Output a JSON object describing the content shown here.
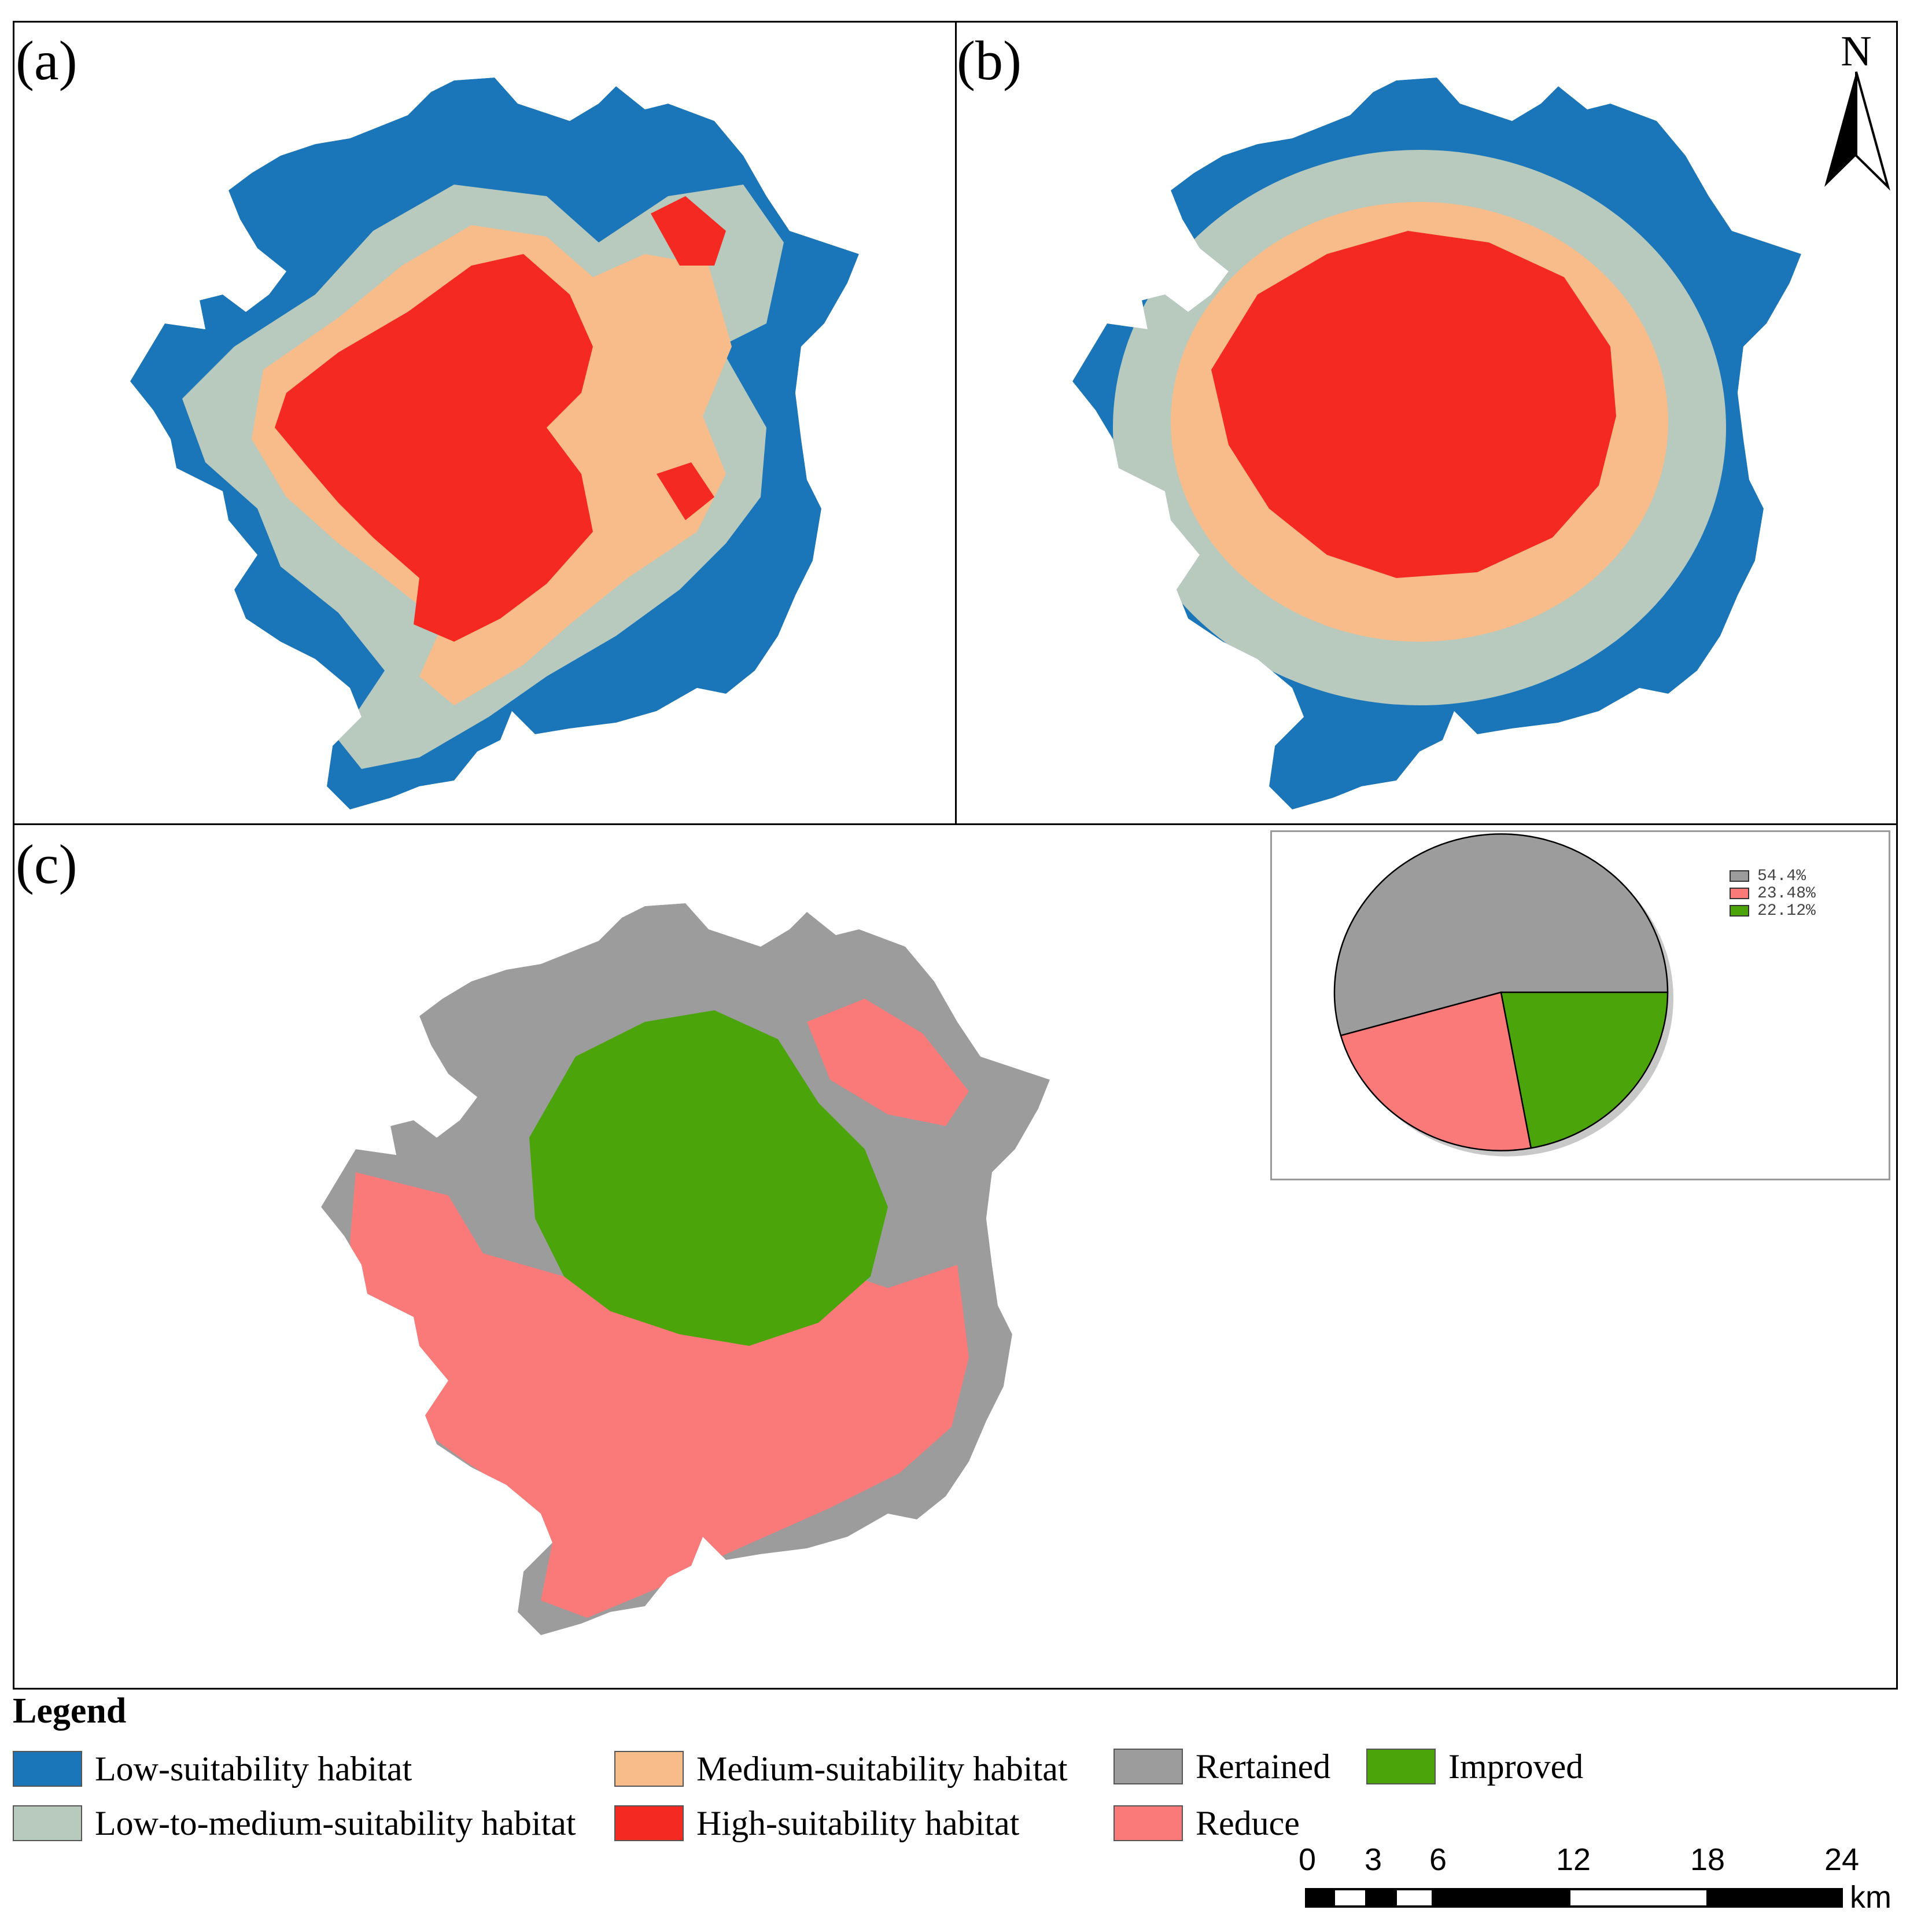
{
  "panels": {
    "a": {
      "label": "(a)"
    },
    "b": {
      "label": "(b)"
    },
    "c": {
      "label": "(c)"
    }
  },
  "north_arrow": {
    "label": "N"
  },
  "colors": {
    "low": "#1a76b8",
    "low_medium": "#b8c9bd",
    "medium": "#f8bc8a",
    "high": "#f42a22",
    "retained": "#9c9c9c",
    "reduce": "#fa7a7a",
    "improved": "#4aa40a"
  },
  "legend": {
    "title": "Legend",
    "low": "Low-suitability habitat",
    "low_medium": "Low-to-medium-suitability habitat",
    "medium": "Medium-suitability habitat",
    "high": "High-suitability habitat",
    "retained": "Rertained",
    "improved": "Improved",
    "reduce": "Reduce"
  },
  "scale_bar": {
    "ticks": [
      "0",
      "3",
      "6",
      "12",
      "18",
      "24"
    ],
    "unit": "km"
  },
  "chart_data": {
    "type": "pie",
    "title": "",
    "slices": [
      {
        "label": "54.4%",
        "value": 54.4,
        "category": "Rertained",
        "color": "#9c9c9c"
      },
      {
        "label": "23.48%",
        "value": 23.48,
        "category": "Reduce",
        "color": "#fa7a7a"
      },
      {
        "label": "22.12%",
        "value": 22.12,
        "category": "Improved",
        "color": "#4aa40a"
      }
    ],
    "legend_position": "top-right"
  }
}
